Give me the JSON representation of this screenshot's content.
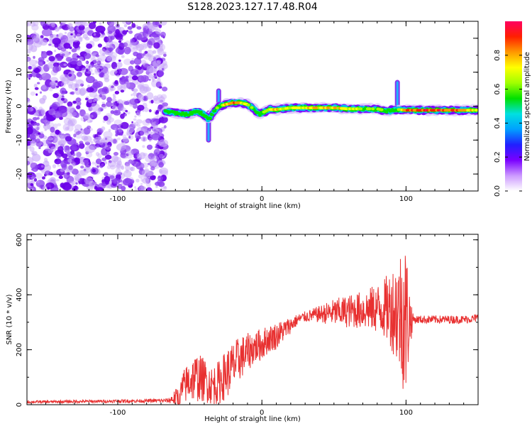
{
  "title": "S128.2023.127.17.48.R04",
  "chart_data": [
    {
      "type": "heatmap",
      "xlabel": "Height of straight line (km)",
      "ylabel": "Frequency (Hz)",
      "xlim": [
        -163,
        150
      ],
      "ylim": [
        -25,
        25
      ],
      "x_ticks": [
        -100,
        0,
        100
      ],
      "x_tick_labels": [
        "-100",
        "0",
        "100"
      ],
      "y_ticks": [
        -20,
        -10,
        0,
        10,
        20
      ],
      "y_tick_labels": [
        "-20",
        "-10",
        "0",
        "10",
        "20"
      ],
      "noise_region": {
        "x_from": -163,
        "x_to": -67,
        "y_from": -25,
        "y_to": 25,
        "color": "#7a20f0"
      },
      "ridge": {
        "x": [
          -67,
          -60,
          -52,
          -45,
          -40,
          -37,
          -33,
          -30,
          -25,
          -20,
          -15,
          -10,
          -5,
          -2,
          0,
          5,
          10,
          20,
          30,
          40,
          50,
          60,
          70,
          80,
          88,
          92,
          95,
          100,
          110,
          120,
          130,
          140,
          150
        ],
        "y": [
          -1.5,
          -2,
          -2.5,
          -1.5,
          -2.5,
          -4,
          -1.5,
          0,
          0.5,
          1,
          1,
          0.5,
          -1,
          -2.5,
          -2,
          -1,
          -1,
          -0.5,
          -0.5,
          -0.5,
          -0.5,
          -0.8,
          -0.8,
          -0.8,
          -1.5,
          -1,
          -1.0,
          -1.2,
          -1.2,
          -1.2,
          -1.2,
          -1.2,
          -1.2
        ],
        "amplitude": [
          0.45,
          0.55,
          0.5,
          0.55,
          0.35,
          0.4,
          0.5,
          0.6,
          0.75,
          0.85,
          0.8,
          0.6,
          0.55,
          0.45,
          0.5,
          0.7,
          0.75,
          0.7,
          0.7,
          0.75,
          0.75,
          0.7,
          0.6,
          0.6,
          0.5,
          0.45,
          0.6,
          0.8,
          0.9,
          0.9,
          0.85,
          0.8,
          0.7
        ]
      },
      "spurs": [
        {
          "x": -37,
          "y_from": -10,
          "y_to": -2
        },
        {
          "x": -30,
          "y_from": -1,
          "y_to": 4.5
        },
        {
          "x": 94,
          "y_from": -1,
          "y_to": 7
        }
      ]
    },
    {
      "type": "line",
      "xlabel": "Height of straight line (km)",
      "ylabel": "SNR (10 * v/v)",
      "xlim": [
        -163,
        150
      ],
      "ylim": [
        0,
        620
      ],
      "x_ticks": [
        -100,
        0,
        100
      ],
      "x_tick_labels": [
        "-100",
        "0",
        "100"
      ],
      "y_ticks": [
        0,
        200,
        400,
        600
      ],
      "y_tick_labels": [
        "0",
        "200",
        "400",
        "600"
      ],
      "color": "#e83030",
      "series": [
        {
          "x": [
            -163,
            -140,
            -120,
            -100,
            -80,
            -65,
            -58,
            -55,
            -50,
            -45,
            -40,
            -35,
            -30,
            -25,
            -20,
            -15,
            -10,
            -5,
            0,
            5,
            10,
            15,
            20,
            25,
            30,
            40,
            50,
            60,
            70,
            80,
            85,
            90,
            95,
            98,
            100,
            102,
            105,
            110,
            120,
            130,
            140,
            150
          ],
          "center": [
            10,
            11,
            12,
            13,
            14,
            15,
            30,
            60,
            90,
            100,
            90,
            70,
            80,
            110,
            140,
            170,
            190,
            210,
            220,
            240,
            250,
            270,
            290,
            310,
            320,
            330,
            335,
            340,
            345,
            350,
            350,
            350,
            340,
            330,
            310,
            310,
            310,
            310,
            310,
            310,
            310,
            315
          ],
          "spread": [
            5,
            5,
            5,
            6,
            6,
            8,
            40,
            60,
            80,
            90,
            80,
            70,
            80,
            90,
            90,
            80,
            70,
            60,
            60,
            50,
            50,
            40,
            30,
            20,
            20,
            30,
            50,
            60,
            70,
            90,
            110,
            150,
            220,
            280,
            300,
            150,
            15,
            15,
            15,
            15,
            15,
            15
          ]
        }
      ]
    }
  ],
  "colorbar": {
    "label": "Normalized spectral amplitude",
    "ticks": [
      0.0,
      0.2,
      0.4,
      0.6,
      0.8
    ],
    "tick_labels": [
      "0.0",
      "0.2",
      "0.4",
      "0.6",
      "0.8"
    ],
    "range": [
      0,
      1
    ],
    "colors": [
      "#ffffff",
      "#cc99ff",
      "#7a00ff",
      "#2020ff",
      "#00a0ff",
      "#00e0e0",
      "#00e000",
      "#a0ff00",
      "#ffff00",
      "#ff9900",
      "#ff2000",
      "#ff0060"
    ]
  }
}
